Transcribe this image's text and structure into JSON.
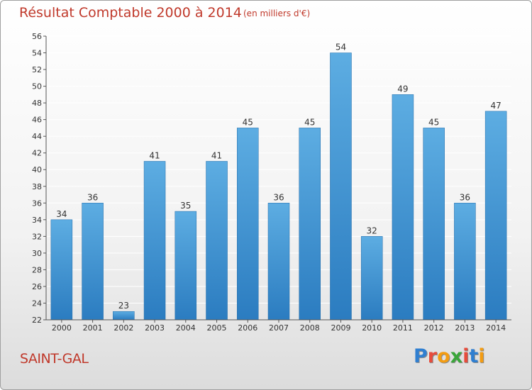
{
  "title": "Résultat Comptable 2000 à 2014",
  "subtitle": "(en milliers d'€)",
  "location": "SAINT-GAL",
  "logo": {
    "text": "Proxiti",
    "letters": [
      {
        "ch": "P",
        "color": "#2f7fd1"
      },
      {
        "ch": "r",
        "color": "#e74c3c"
      },
      {
        "ch": "o",
        "color": "#f39c12"
      },
      {
        "ch": "x",
        "color": "#3aa63a"
      },
      {
        "ch": "i",
        "color": "#e74c3c"
      },
      {
        "ch": "t",
        "color": "#2f7fd1"
      },
      {
        "ch": "i",
        "color": "#f39c12"
      }
    ]
  },
  "colors": {
    "bar_light": "#5dade2",
    "bar_dark": "#2b7cc0",
    "text_red": "#c0392b",
    "grid": "#ffffff",
    "axis_text": "#333333"
  },
  "chart_data": {
    "type": "bar",
    "title": "Résultat Comptable 2000 à 2014",
    "subtitle": "(en milliers d'€)",
    "categories": [
      "2000",
      "2001",
      "2002",
      "2003",
      "2004",
      "2005",
      "2006",
      "2007",
      "2008",
      "2009",
      "2010",
      "2011",
      "2012",
      "2013",
      "2014"
    ],
    "values": [
      34,
      36,
      23,
      41,
      35,
      41,
      45,
      36,
      45,
      54,
      32,
      49,
      45,
      36,
      47
    ],
    "ylim": [
      22,
      56
    ],
    "ytick_step": 2,
    "grid": true,
    "data_labels": true,
    "legend": "none"
  }
}
